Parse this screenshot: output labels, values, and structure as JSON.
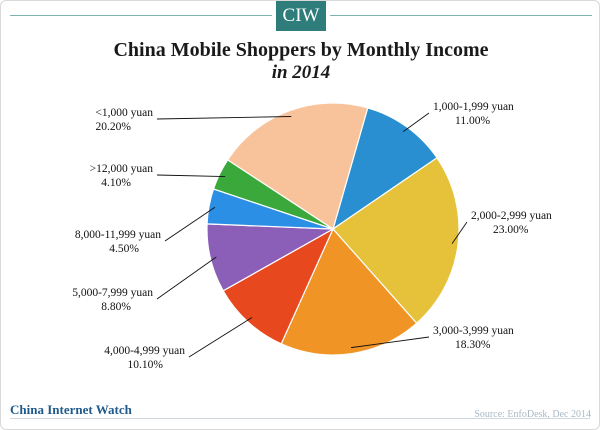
{
  "header": {
    "badge": "CIW"
  },
  "chart_data": {
    "type": "pie",
    "title": "China Mobile Shoppers by Monthly Income",
    "subtitle": "in 2014",
    "slices": [
      {
        "label": "1,000-1,999 yuan",
        "value": 11.0,
        "value_text": "11.00%",
        "color": "#2a8fd0"
      },
      {
        "label": "2,000-2,999 yuan",
        "value": 23.0,
        "value_text": "23.00%",
        "color": "#e6c13a"
      },
      {
        "label": "3,000-3,999 yuan",
        "value": 18.3,
        "value_text": "18.30%",
        "color": "#f09426"
      },
      {
        "label": "4,000-4,999 yuan",
        "value": 10.1,
        "value_text": "10.10%",
        "color": "#e8481e"
      },
      {
        "label": "5,000-7,999 yuan",
        "value": 8.8,
        "value_text": "8.80%",
        "color": "#8b5fb8"
      },
      {
        "label": "8,000-11,999 yuan",
        "value": 4.5,
        "value_text": "4.50%",
        "color": "#2c8fe6"
      },
      {
        "label": ">12,000 yuan",
        "value": 4.1,
        "value_text": "4.10%",
        "color": "#3aa83a"
      },
      {
        "label": "<1,000 yuan",
        "value": 20.2,
        "value_text": "20.20%",
        "color": "#f8c29a"
      }
    ]
  },
  "footer": {
    "brand": "China Internet Watch",
    "source": "Source: EnfoDesk, Dec 2014"
  }
}
